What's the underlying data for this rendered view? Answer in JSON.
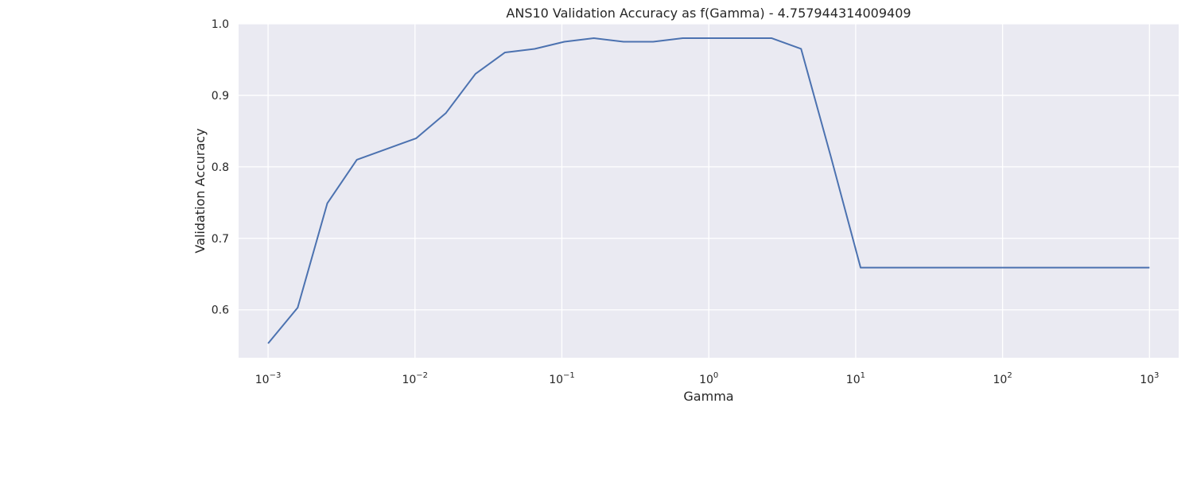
{
  "chart_data": {
    "type": "line",
    "title": "ANS10 Validation Accuracy as f(Gamma) - 4.757944314009409",
    "xlabel": "Gamma",
    "ylabel": "Validation Accuracy",
    "xscale": "log",
    "xlim": [
      0.00063,
      1580
    ],
    "ylim": [
      0.533,
      1.0
    ],
    "grid": true,
    "legend": "none",
    "x_ticks": [
      {
        "base": "10",
        "exp": "−3",
        "value": 0.001
      },
      {
        "base": "10",
        "exp": "−2",
        "value": 0.01
      },
      {
        "base": "10",
        "exp": "−1",
        "value": 0.1
      },
      {
        "base": "10",
        "exp": "0",
        "value": 1
      },
      {
        "base": "10",
        "exp": "1",
        "value": 10
      },
      {
        "base": "10",
        "exp": "2",
        "value": 100
      },
      {
        "base": "10",
        "exp": "3",
        "value": 1000
      }
    ],
    "y_ticks": [
      {
        "label": "0.6",
        "value": 0.6
      },
      {
        "label": "0.7",
        "value": 0.7
      },
      {
        "label": "0.8",
        "value": 0.8
      },
      {
        "label": "0.9",
        "value": 0.9
      },
      {
        "label": "1.0",
        "value": 1.0
      }
    ],
    "colors": {
      "line": "#4c72b0",
      "plot_bg": "#eaeaf2",
      "grid": "#ffffff"
    },
    "series": [
      {
        "x": [
          0.001,
          0.00159,
          0.00253,
          0.00402,
          0.0064,
          0.0102,
          0.0162,
          0.0258,
          0.041,
          0.0652,
          0.104,
          0.165,
          0.263,
          0.418,
          0.665,
          1.06,
          1.68,
          2.67,
          4.25,
          6.76,
          10.8,
          17.1,
          27.2,
          43.3,
          68.8,
          109,
          174,
          277,
          440,
          700,
          1000
        ],
        "y": [
          0.553,
          0.603,
          0.749,
          0.81,
          0.825,
          0.84,
          0.875,
          0.93,
          0.96,
          0.965,
          0.975,
          0.98,
          0.975,
          0.975,
          0.98,
          0.98,
          0.98,
          0.98,
          0.965,
          0.815,
          0.659,
          0.659,
          0.659,
          0.659,
          0.659,
          0.659,
          0.659,
          0.659,
          0.659,
          0.659,
          0.659
        ]
      }
    ]
  }
}
